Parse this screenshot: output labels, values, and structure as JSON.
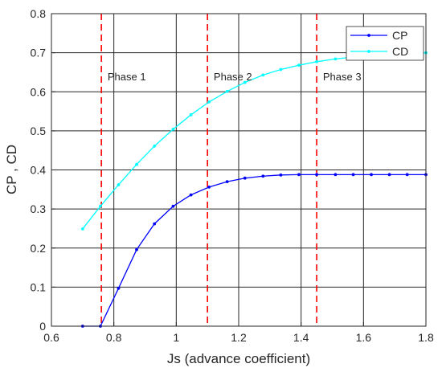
{
  "chart_data": {
    "type": "line",
    "title": "",
    "xlabel": "Js (advance coefficient)",
    "ylabel": "CP , CD",
    "xlim": [
      0.6,
      1.8
    ],
    "ylim": [
      0,
      0.8
    ],
    "xticks": [
      "0.6",
      "0.8",
      "1",
      "1.2",
      "1.4",
      "1.6",
      "1.8"
    ],
    "yticks": [
      "0",
      "0.1",
      "0.2",
      "0.3",
      "0.4",
      "0.5",
      "0.6",
      "0.7",
      "0.8"
    ],
    "grid": true,
    "legend_position": "top-right",
    "series": [
      {
        "name": "CP",
        "color": "#0000ff",
        "marker": "dot",
        "x": [
          0.7,
          0.757,
          0.815,
          0.873,
          0.93,
          0.99,
          1.047,
          1.105,
          1.163,
          1.22,
          1.278,
          1.335,
          1.393,
          1.45,
          1.51,
          1.567,
          1.625,
          1.683,
          1.74,
          1.8
        ],
        "y": [
          0.0,
          0.0,
          0.097,
          0.196,
          0.262,
          0.307,
          0.336,
          0.356,
          0.37,
          0.379,
          0.384,
          0.387,
          0.388,
          0.388,
          0.388,
          0.388,
          0.388,
          0.388,
          0.388,
          0.388
        ]
      },
      {
        "name": "CD",
        "color": "#00ffff",
        "marker": "dot",
        "x": [
          0.7,
          0.757,
          0.815,
          0.873,
          0.93,
          0.99,
          1.047,
          1.105,
          1.163,
          1.22,
          1.278,
          1.335,
          1.393,
          1.45,
          1.51,
          1.567,
          1.625,
          1.683,
          1.74,
          1.8
        ],
        "y": [
          0.249,
          0.307,
          0.362,
          0.414,
          0.461,
          0.504,
          0.541,
          0.574,
          0.601,
          0.624,
          0.643,
          0.657,
          0.668,
          0.677,
          0.684,
          0.689,
          0.693,
          0.696,
          0.698,
          0.7
        ]
      }
    ],
    "phase_lines": {
      "color": "#ff0000",
      "style": "dashed",
      "x": [
        0.76,
        1.1,
        1.45
      ]
    },
    "annotations": [
      {
        "text": "Phase 1",
        "x": 0.78,
        "y": 0.64
      },
      {
        "text": "Phase 2",
        "x": 1.12,
        "y": 0.64
      },
      {
        "text": "Phase 3",
        "x": 1.47,
        "y": 0.64
      }
    ]
  }
}
